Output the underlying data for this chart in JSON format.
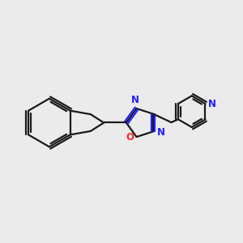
{
  "bg_color": "#ebebeb",
  "bond_color": "#1a1a1a",
  "N_color": "#2020ff",
  "O_color": "#ff2020",
  "line_width": 1.6,
  "figsize": [
    3.0,
    3.0
  ],
  "dpi": 100,
  "xlim": [
    -0.5,
    9.5
  ],
  "ylim": [
    -1.0,
    5.5
  ]
}
